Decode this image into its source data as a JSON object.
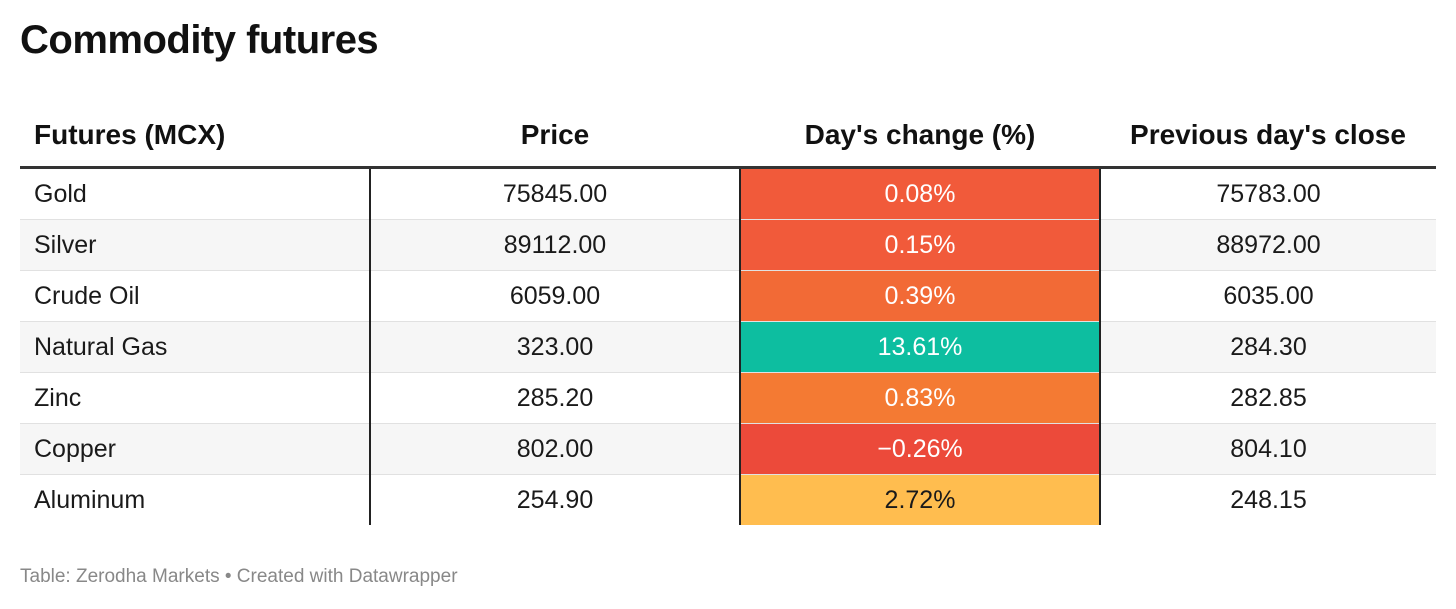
{
  "title": "Commodity futures",
  "footer": "Table: Zerodha Markets • Created with Datawrapper",
  "chart_data": {
    "type": "table",
    "title": "Commodity futures",
    "columns": [
      "Futures (MCX)",
      "Price",
      "Day's change (%)",
      "Previous day's close"
    ],
    "rows": [
      {
        "name": "Gold",
        "price": "75845.00",
        "change": "0.08%",
        "prev": "75783.00",
        "change_value": 0.08,
        "color": "#f15a3a",
        "text_color": "#ffffff"
      },
      {
        "name": "Silver",
        "price": "89112.00",
        "change": "0.15%",
        "prev": "88972.00",
        "change_value": 0.15,
        "color": "#f15a3a",
        "text_color": "#ffffff"
      },
      {
        "name": "Crude Oil",
        "price": "6059.00",
        "change": "0.39%",
        "prev": "6035.00",
        "change_value": 0.39,
        "color": "#f26a36",
        "text_color": "#ffffff"
      },
      {
        "name": "Natural Gas",
        "price": "323.00",
        "change": "13.61%",
        "prev": "284.30",
        "change_value": 13.61,
        "color": "#0dbea0",
        "text_color": "#ffffff"
      },
      {
        "name": "Zinc",
        "price": "285.20",
        "change": "0.83%",
        "prev": "282.85",
        "change_value": 0.83,
        "color": "#f47a33",
        "text_color": "#ffffff"
      },
      {
        "name": "Copper",
        "price": "802.00",
        "change": "−0.26%",
        "prev": "804.10",
        "change_value": -0.26,
        "color": "#ec4a3a",
        "text_color": "#ffffff"
      },
      {
        "name": "Aluminum",
        "price": "254.90",
        "change": "2.72%",
        "prev": "248.15",
        "change_value": 2.72,
        "color": "#ffbd4f",
        "text_color": "#1a1a1a"
      }
    ]
  }
}
